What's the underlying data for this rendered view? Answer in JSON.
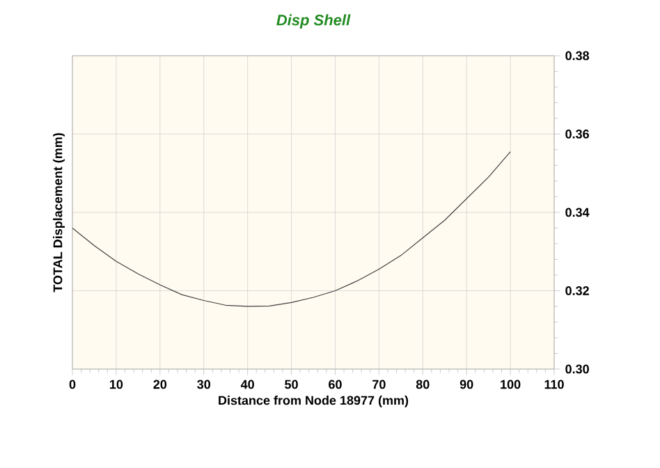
{
  "chart_data": {
    "type": "line",
    "title": "Disp Shell",
    "xlabel": "Distance from Node 18977 (mm)",
    "ylabel": "TOTAL Displacement (mm)",
    "x": [
      0,
      5,
      10,
      15,
      20,
      25,
      30,
      35,
      40,
      45,
      50,
      55,
      60,
      65,
      70,
      75,
      80,
      85,
      90,
      95,
      100
    ],
    "series": [
      {
        "color": "#404040",
        "values": [
          0.336,
          0.3315,
          0.3275,
          0.3243,
          0.3215,
          0.319,
          0.3175,
          0.3163,
          0.316,
          0.3161,
          0.317,
          0.3183,
          0.32,
          0.3225,
          0.3255,
          0.329,
          0.3335,
          0.338,
          0.3435,
          0.349,
          0.3555
        ]
      }
    ],
    "xlim": [
      0,
      110
    ],
    "xticks": [
      0,
      10,
      20,
      30,
      40,
      50,
      60,
      70,
      80,
      90,
      100,
      110
    ],
    "ylim": [
      0.3,
      0.38
    ],
    "yticks": [
      {
        "value": 0.3,
        "label": "0.30"
      },
      0.32,
      0.34,
      0.36,
      0.38
    ],
    "grid": true,
    "marker": "none",
    "line_style": "solid"
  }
}
